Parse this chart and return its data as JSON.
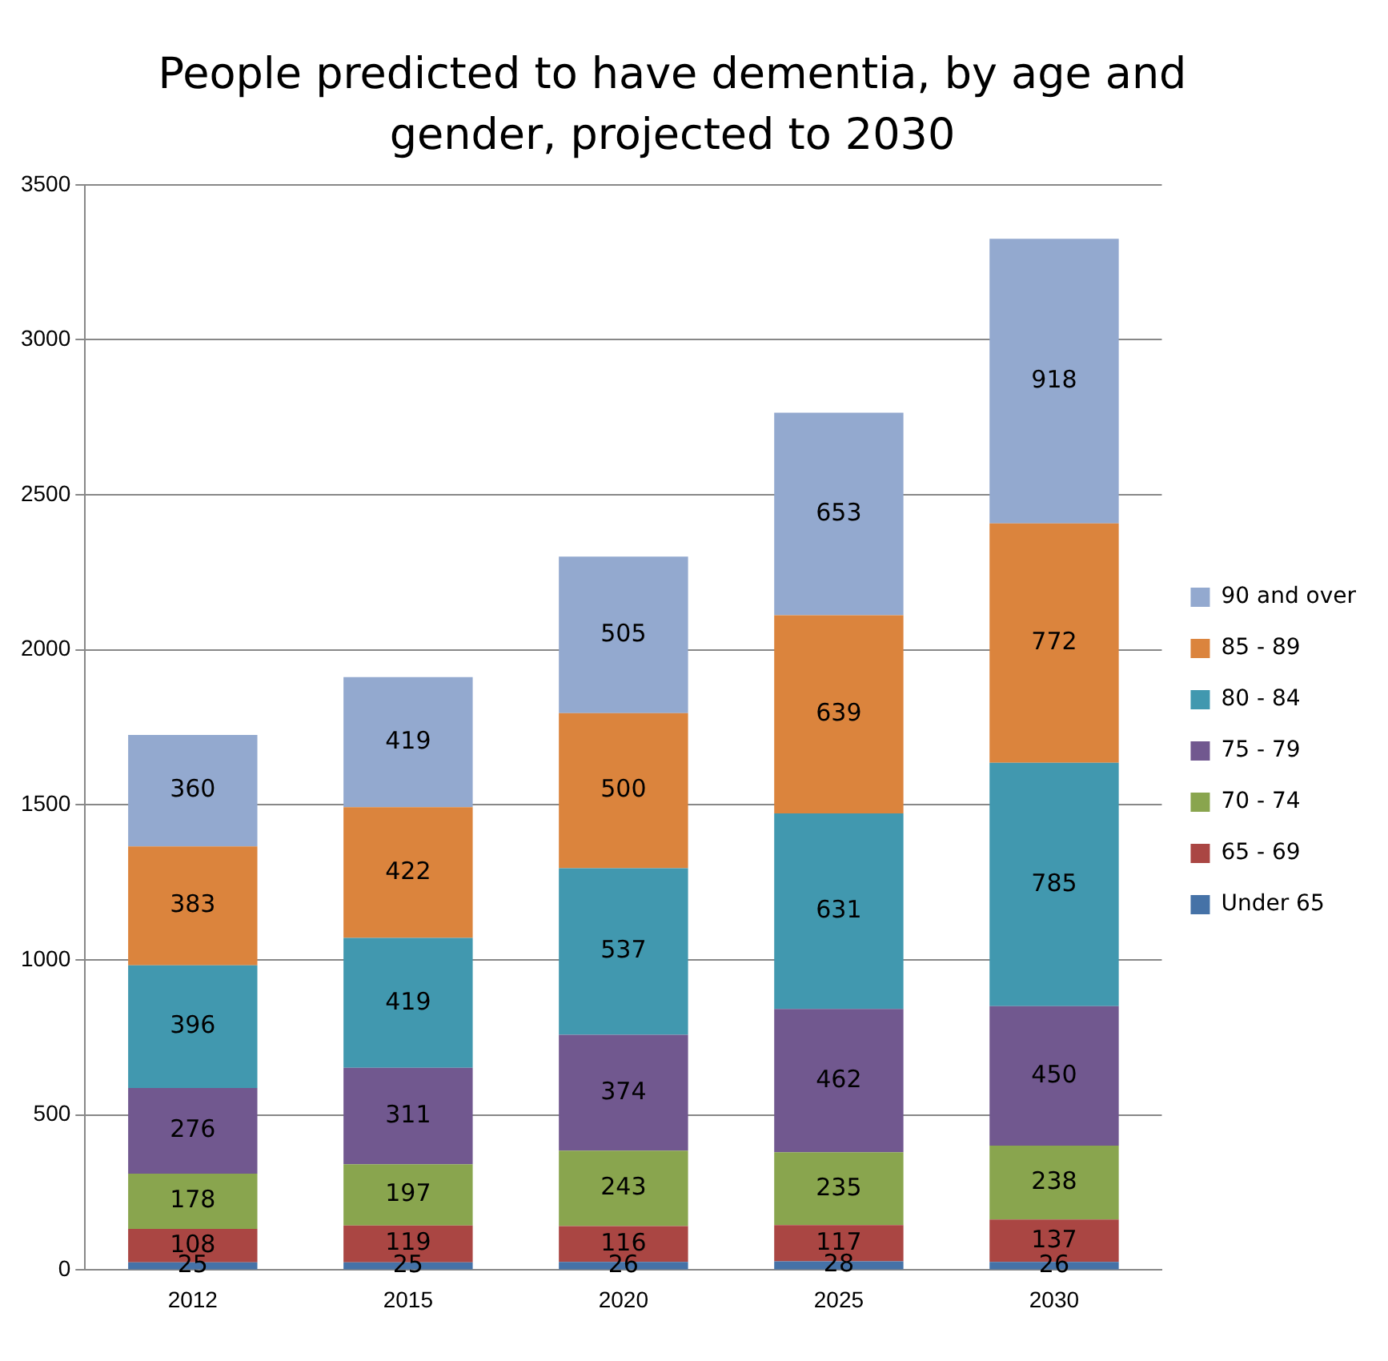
{
  "chart_data": {
    "type": "bar",
    "title": "People predicted to have dementia, by age and gender, projected to 2030",
    "categories": [
      "2012",
      "2015",
      "2020",
      "2025",
      "2030"
    ],
    "stacked": true,
    "series": [
      {
        "name": "Under 65",
        "color": "#4572a7",
        "values": [
          25,
          25,
          26,
          28,
          26
        ]
      },
      {
        "name": "65 - 69",
        "color": "#aa4643",
        "values": [
          108,
          119,
          116,
          117,
          137
        ]
      },
      {
        "name": "70 - 74",
        "color": "#89a54e",
        "values": [
          178,
          197,
          243,
          235,
          238
        ]
      },
      {
        "name": "75 - 79",
        "color": "#71588f",
        "values": [
          276,
          311,
          374,
          462,
          450
        ]
      },
      {
        "name": "80 - 84",
        "color": "#4198af",
        "values": [
          396,
          419,
          537,
          631,
          785
        ]
      },
      {
        "name": "85 - 89",
        "color": "#db843d",
        "values": [
          383,
          422,
          500,
          639,
          772
        ]
      },
      {
        "name": "90 and over",
        "color": "#93a9cf",
        "values": [
          360,
          419,
          505,
          653,
          918
        ]
      }
    ],
    "ylim": [
      0,
      3500
    ],
    "yticks": [
      0,
      500,
      1000,
      1500,
      2000,
      2500,
      3000,
      3500
    ],
    "grid": "y",
    "legend": "right",
    "data_labels": true
  }
}
